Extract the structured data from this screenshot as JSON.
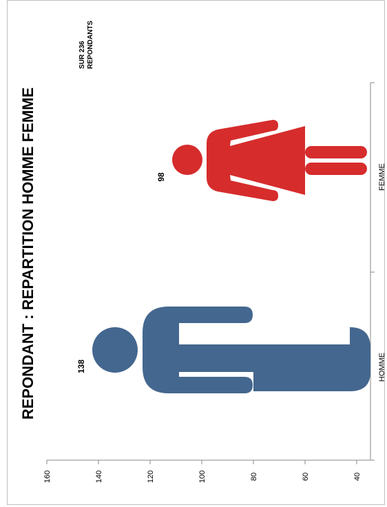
{
  "chart_data": {
    "type": "bar",
    "orientation": "rotated-90",
    "title": "REPONDANT : REPARTITION HOMME FEMME",
    "annotation_line1": "SUR 236",
    "annotation_line2": "REPONDANTS",
    "categories": [
      "HOMME",
      "FEMME"
    ],
    "values": [
      138,
      98
    ],
    "data_labels": [
      "138",
      "98"
    ],
    "ylim": [
      0,
      160
    ],
    "yticks": [
      "0",
      "20",
      "40",
      "60",
      "80",
      "100",
      "120",
      "140",
      "160"
    ],
    "grid": false,
    "legend": "none",
    "series_colors": [
      "#44678f",
      "#d62c2c"
    ],
    "icons": [
      "male-figure-icon",
      "female-figure-icon"
    ]
  }
}
